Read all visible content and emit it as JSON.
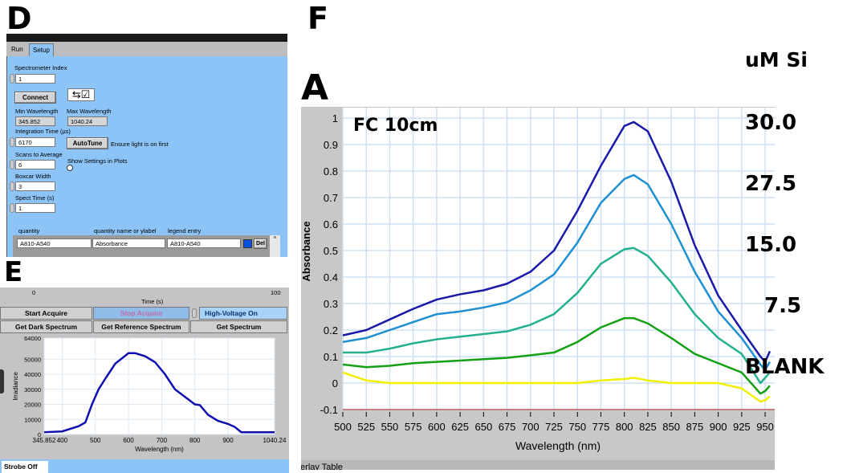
{
  "panel_labels": {
    "d": "D",
    "e": "E",
    "f": "F",
    "a": "A"
  },
  "setup": {
    "tabs": [
      "Run",
      "Setup"
    ],
    "spectrometer_index_label": "Spectrometer Index",
    "spectrometer_index": "1",
    "connect_label": "Connect",
    "toggle_icon": "⇆☑",
    "min_wl_label": "Min Wavelength",
    "min_wl": "345.852",
    "max_wl_label": "Max Wavelength",
    "max_wl": "1040.24",
    "integration_label": "Integration Time (µs)",
    "integration": "6170",
    "autotune_label": "AutoTune",
    "autotune_note": "Ensure light is on first",
    "scans_label": "Scans to Average",
    "scans": "6",
    "show_settings_label": "Show Settings in Plots",
    "show_settings": false,
    "boxcar_label": "Boxcar Width",
    "boxcar": "3",
    "spect_time_label": "Spect Time (s)",
    "spect_time": "1",
    "table_headers": [
      "quantity",
      "quantity name or ylabel",
      "legend entry"
    ],
    "table_row": {
      "quantity": "A810-A540",
      "name": "Absorbance",
      "legend": "A810-A540",
      "color": "#0a4fe0",
      "del_label": "Del"
    }
  },
  "acquire": {
    "time_axis": {
      "min": "0",
      "max": "100",
      "label": "Time (s)"
    },
    "buttons": [
      "Start Acquire",
      "Stop Acquire",
      "High-Voltage On",
      "Get Dark Spectrum",
      "Get Reference Spectrum",
      "Get Spectrum"
    ],
    "strobe_tab": "Strobe Off",
    "overlay_tab": "Overlay Table"
  },
  "chart_data": [
    {
      "type": "line",
      "xlabel": "Wavelength (nm)",
      "ylabel": "Irradiance",
      "xlim": [
        345.852,
        1040.24
      ],
      "ylim": [
        0,
        64000
      ],
      "xticks": [
        "345.852",
        "400",
        "500",
        "600",
        "700",
        "800",
        "900",
        "1040.24"
      ],
      "xtick_values": [
        345.852,
        400,
        500,
        600,
        700,
        800,
        900,
        1040.24
      ],
      "yticks": [
        0,
        10000,
        20000,
        30000,
        40000,
        50000,
        64000
      ],
      "grid": true,
      "color": "#1010b0",
      "x": [
        345.852,
        400,
        450,
        470,
        490,
        510,
        530,
        560,
        600,
        620,
        650,
        680,
        710,
        740,
        770,
        800,
        815,
        840,
        870,
        900,
        920,
        940,
        1040.24
      ],
      "y": [
        1500,
        2000,
        5500,
        8000,
        20000,
        30000,
        37000,
        47000,
        54000,
        54000,
        52000,
        48000,
        40000,
        30000,
        25000,
        20000,
        19500,
        13000,
        9000,
        7000,
        5000,
        1500,
        1500
      ]
    },
    {
      "type": "line",
      "title": "FC 10cm",
      "xlabel": "Wavelength (nm)",
      "ylabel": "Absorbance",
      "xlim": [
        500,
        957
      ],
      "ylim": [
        -0.1,
        1.03
      ],
      "xticks": [
        500,
        525,
        550,
        575,
        600,
        625,
        650,
        675,
        700,
        725,
        750,
        775,
        800,
        825,
        850,
        875,
        900,
        925,
        950
      ],
      "yticks": [
        "-0.1",
        "0",
        "0.1",
        "0.2",
        "0.3",
        "0.4",
        "0.5",
        "0.6",
        "0.7",
        "0.8",
        "0.9",
        "1"
      ],
      "grid": true,
      "legend_title": "uM Si",
      "legend_placement": "right",
      "x": [
        500,
        525,
        550,
        575,
        600,
        625,
        650,
        675,
        700,
        725,
        750,
        775,
        800,
        810,
        825,
        850,
        875,
        900,
        925,
        945,
        950,
        955
      ],
      "series": [
        {
          "name": "30.0",
          "color": "#1a1aa8",
          "values": [
            0.18,
            0.2,
            0.24,
            0.28,
            0.315,
            0.335,
            0.35,
            0.375,
            0.42,
            0.5,
            0.65,
            0.82,
            0.97,
            0.985,
            0.95,
            0.76,
            0.52,
            0.33,
            0.2,
            0.1,
            0.08,
            0.12
          ]
        },
        {
          "name": "27.5",
          "color": "#1e90d0",
          "values": [
            0.155,
            0.17,
            0.2,
            0.23,
            0.26,
            0.27,
            0.285,
            0.305,
            0.35,
            0.41,
            0.53,
            0.68,
            0.77,
            0.785,
            0.75,
            0.6,
            0.42,
            0.27,
            0.17,
            0.07,
            0.05,
            0.08
          ]
        },
        {
          "name": "15.0",
          "color": "#22b08e",
          "values": [
            0.115,
            0.115,
            0.13,
            0.15,
            0.165,
            0.175,
            0.185,
            0.195,
            0.22,
            0.26,
            0.34,
            0.45,
            0.505,
            0.51,
            0.48,
            0.38,
            0.26,
            0.17,
            0.11,
            0.0,
            0.02,
            0.04
          ]
        },
        {
          "name": "7.5",
          "color": "#14a014",
          "values": [
            0.07,
            0.06,
            0.065,
            0.075,
            0.08,
            0.085,
            0.09,
            0.095,
            0.105,
            0.115,
            0.155,
            0.21,
            0.245,
            0.245,
            0.225,
            0.17,
            0.11,
            0.075,
            0.04,
            -0.04,
            -0.03,
            -0.01
          ]
        },
        {
          "name": "BLANK",
          "color": "#f0f000",
          "values": [
            0.04,
            0.01,
            0,
            0,
            0,
            0,
            0,
            0,
            0,
            0,
            0,
            0.01,
            0.015,
            0.02,
            0.01,
            0,
            0,
            0,
            -0.02,
            -0.07,
            -0.065,
            -0.05
          ]
        }
      ]
    }
  ]
}
